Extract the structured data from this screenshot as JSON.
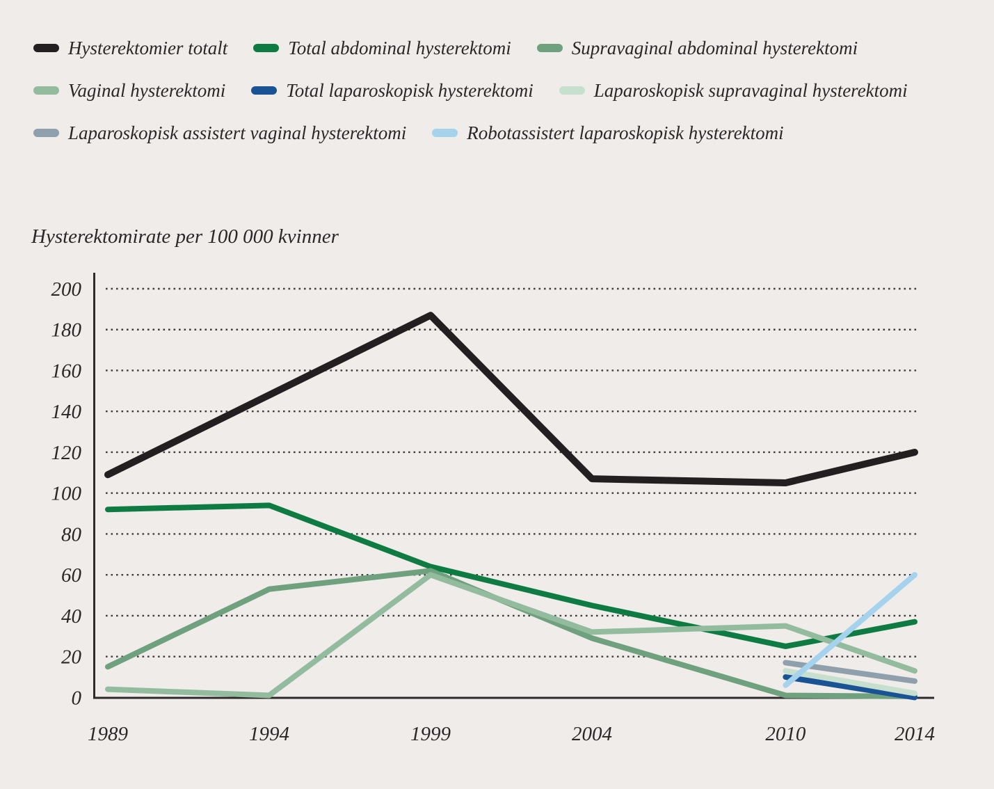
{
  "page": {
    "background": "#EFECEA"
  },
  "chart_data": {
    "type": "line",
    "title": "Hysterektomirate per 100 000 kvinner",
    "xlabel": "",
    "ylabel": "Hysterektomirate per 100 000 kvinner",
    "x_tick_labels": [
      "1989",
      "1994",
      "1999",
      "2004",
      "2010",
      "2014"
    ],
    "x_tick_years": [
      1989,
      1994,
      1999,
      2004,
      2010,
      2014
    ],
    "y_ticks": [
      0,
      20,
      40,
      60,
      80,
      100,
      120,
      140,
      160,
      180,
      200
    ],
    "ylim": [
      0,
      200
    ],
    "xlim": [
      1989,
      2014
    ],
    "grid": "dotted-horizontal",
    "legend_position": "top-left",
    "series": [
      {
        "name": "Hysterektomier totalt",
        "color": "#231F20",
        "x": [
          1989,
          1994,
          1999,
          2004,
          2010,
          2014
        ],
        "values": [
          109,
          148,
          187,
          107,
          105,
          120
        ]
      },
      {
        "name": "Total abdominal hysterektomi",
        "color": "#0E7C42",
        "x": [
          1989,
          1994,
          1999,
          2004,
          2010,
          2014
        ],
        "values": [
          92,
          94,
          64,
          45,
          25,
          37
        ]
      },
      {
        "name": "Supravaginal abdominal hysterektomi",
        "color": "#6FA17E",
        "x": [
          1989,
          1994,
          1999,
          2004,
          2010,
          2014
        ],
        "values": [
          15,
          53,
          62,
          29,
          1,
          0.5
        ]
      },
      {
        "name": "Vaginal hysterektomi",
        "color": "#93BC9E",
        "x": [
          1989,
          1994,
          1999,
          2004,
          2010,
          2014
        ],
        "values": [
          4,
          1,
          60,
          32,
          35,
          13
        ]
      },
      {
        "name": "Total laparoskopisk hysterektomi",
        "color": "#1A5394",
        "x": [
          2010,
          2014
        ],
        "values": [
          10,
          0
        ]
      },
      {
        "name": "Laparoskopisk supravaginal hysterektomi",
        "color": "#C7DFCE",
        "x": [
          2010,
          2014
        ],
        "values": [
          13,
          2
        ]
      },
      {
        "name": "Laparoskopisk assistert vaginal hysterektomi",
        "color": "#8FA0AC",
        "x": [
          2010,
          2014
        ],
        "values": [
          17,
          8
        ]
      },
      {
        "name": "Robotassistert laparoskopisk hysterektomi",
        "color": "#A5D2EC",
        "x": [
          2010,
          2014
        ],
        "values": [
          6,
          60
        ]
      }
    ]
  }
}
